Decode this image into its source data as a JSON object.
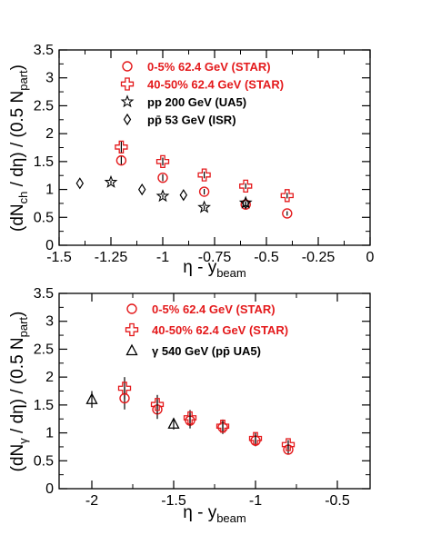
{
  "chart_data": [
    {
      "type": "scatter",
      "xlabel": "η - y_beam",
      "ylabel": "(dN_ch / dη) / (0.5 N_part)",
      "xlim": [
        -1.5,
        0
      ],
      "ylim": [
        0,
        3.5
      ],
      "xticks": [
        "-1.5",
        "-1.25",
        "-1",
        "-0.75",
        "-0.5",
        "-0.25",
        "0"
      ],
      "yticks": [
        "0",
        "0.5",
        "1",
        "1.5",
        "2",
        "2.5",
        "3",
        "3.5"
      ],
      "series": [
        {
          "name": "0-5% 62.4 GeV (STAR)",
          "marker": "circle",
          "color": "#e41a1c",
          "points": [
            {
              "x": -1.2,
              "y": 1.52,
              "err": 0.08
            },
            {
              "x": -1.0,
              "y": 1.21,
              "err": 0.06
            },
            {
              "x": -0.8,
              "y": 0.96,
              "err": 0.05
            },
            {
              "x": -0.6,
              "y": 0.73,
              "err": 0.04
            },
            {
              "x": -0.4,
              "y": 0.57,
              "err": 0.04
            }
          ]
        },
        {
          "name": "40-50% 62.4 GeV (STAR)",
          "marker": "cross",
          "color": "#e41a1c",
          "points": [
            {
              "x": -1.2,
              "y": 1.76,
              "err": 0.1
            },
            {
              "x": -1.0,
              "y": 1.5,
              "err": 0.07
            },
            {
              "x": -0.8,
              "y": 1.26,
              "err": 0.06
            },
            {
              "x": -0.6,
              "y": 1.06,
              "err": 0.05
            },
            {
              "x": -0.4,
              "y": 0.89,
              "err": 0.05
            }
          ]
        },
        {
          "name": "pp 200 GeV (UA5)",
          "marker": "star",
          "color": "#000000",
          "points": [
            {
              "x": -1.25,
              "y": 1.13,
              "err": 0.03
            },
            {
              "x": -1.0,
              "y": 0.88,
              "err": 0.03
            },
            {
              "x": -0.8,
              "y": 0.68,
              "err": 0.03
            },
            {
              "x": -0.6,
              "y": 0.76,
              "err": 0.03
            }
          ]
        },
        {
          "name": "pp̄ 53 GeV (ISR)",
          "marker": "diamond",
          "color": "#000000",
          "points": [
            {
              "x": -1.4,
              "y": 1.11,
              "err": 0
            },
            {
              "x": -1.1,
              "y": 1.0,
              "err": 0
            },
            {
              "x": -0.9,
              "y": 0.9,
              "err": 0
            },
            {
              "x": -0.6,
              "y": 0.75,
              "err": 0
            }
          ]
        }
      ]
    },
    {
      "type": "scatter",
      "xlabel": "η - y_beam",
      "ylabel": "(dN_γ / dη) / (0.5 N_part)",
      "xlim": [
        -2.2,
        -0.3
      ],
      "ylim": [
        0,
        3.5
      ],
      "xticks": [
        "-2",
        "-1.5",
        "-1",
        "-0.5"
      ],
      "yticks": [
        "0",
        "0.5",
        "1",
        "1.5",
        "2",
        "2.5",
        "3",
        "3.5"
      ],
      "series": [
        {
          "name": "0-5% 62.4 GeV (STAR)",
          "marker": "circle",
          "color": "#e41a1c",
          "points": [
            {
              "x": -1.8,
              "y": 1.62,
              "err": 0.2
            },
            {
              "x": -1.6,
              "y": 1.42,
              "err": 0.17
            },
            {
              "x": -1.4,
              "y": 1.22,
              "err": 0.14
            },
            {
              "x": -1.2,
              "y": 1.1,
              "err": 0.12
            },
            {
              "x": -1.0,
              "y": 0.86,
              "err": 0.1
            },
            {
              "x": -0.8,
              "y": 0.7,
              "err": 0.08
            }
          ]
        },
        {
          "name": "40-50% 62.4 GeV (STAR)",
          "marker": "cross",
          "color": "#e41a1c",
          "points": [
            {
              "x": -1.8,
              "y": 1.8,
              "err": 0.2
            },
            {
              "x": -1.6,
              "y": 1.51,
              "err": 0.17
            },
            {
              "x": -1.4,
              "y": 1.27,
              "err": 0.14
            },
            {
              "x": -1.2,
              "y": 1.12,
              "err": 0.12
            },
            {
              "x": -1.0,
              "y": 0.9,
              "err": 0.1
            },
            {
              "x": -0.8,
              "y": 0.79,
              "err": 0.08
            }
          ]
        },
        {
          "name": "γ 540 GeV (pp̄ UA5)",
          "marker": "triangle",
          "color": "#000000",
          "points": [
            {
              "x": -2.0,
              "y": 1.6,
              "err": 0.15
            },
            {
              "x": -1.5,
              "y": 1.16,
              "err": 0.1
            }
          ]
        }
      ]
    }
  ]
}
